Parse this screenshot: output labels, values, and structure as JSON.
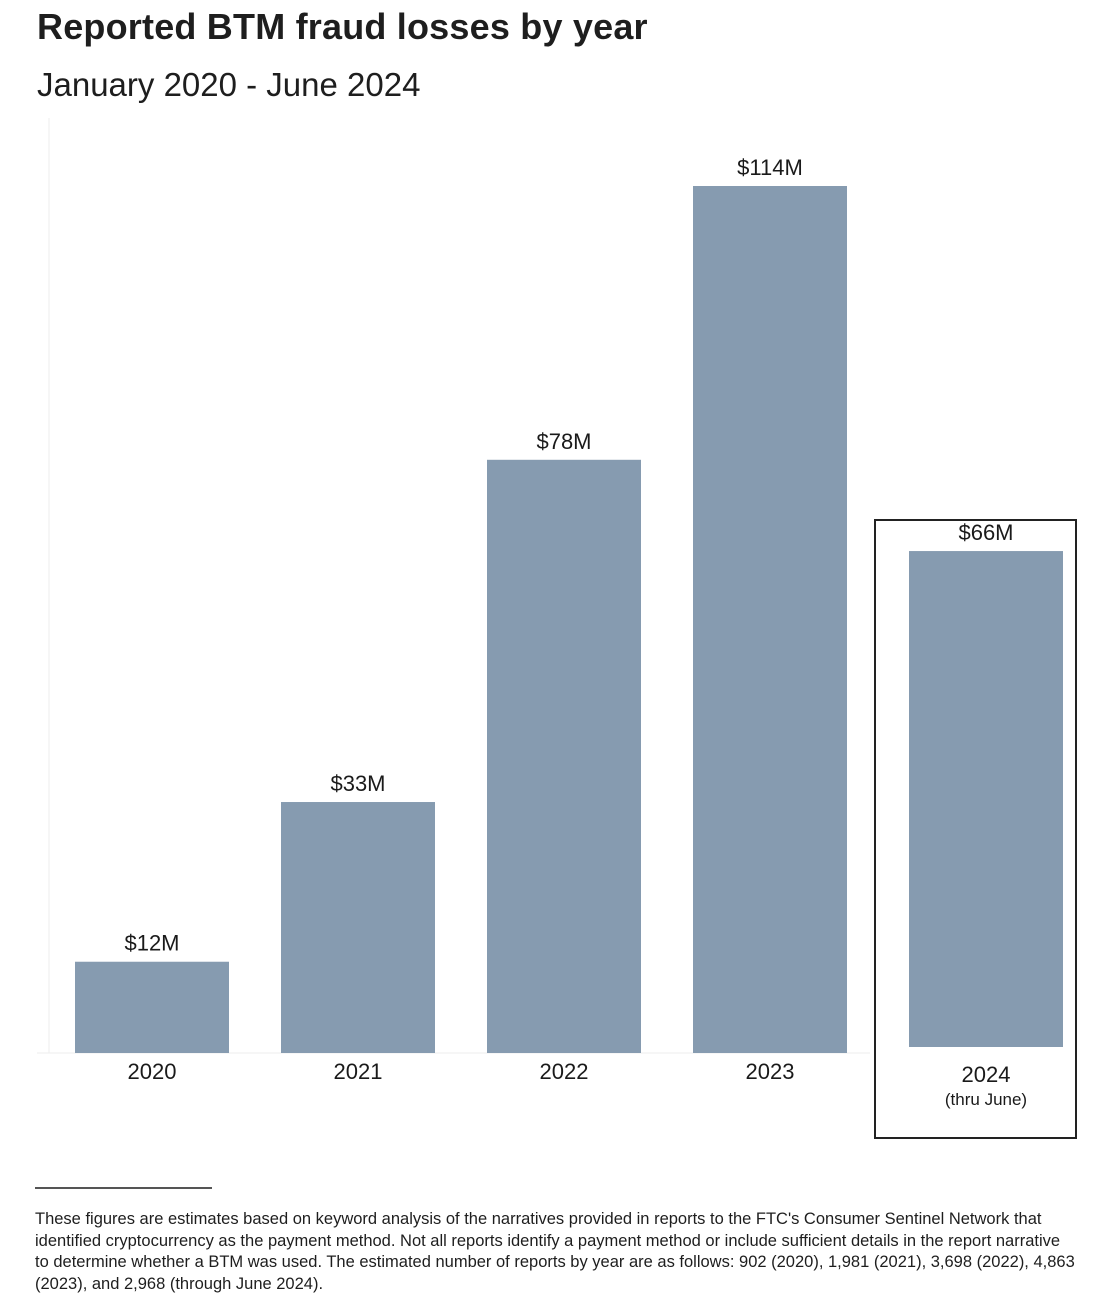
{
  "chart_data": {
    "type": "bar",
    "title": "Reported BTM fraud losses by year",
    "subtitle": "January 2020 - June 2024",
    "xlabel": "",
    "ylabel": "",
    "ylim": [
      0,
      114
    ],
    "grid": false,
    "categories": [
      "2020",
      "2021",
      "2022",
      "2023",
      "2024"
    ],
    "category_sublabels": [
      "",
      "",
      "",
      "",
      "(thru June)"
    ],
    "values": [
      12,
      33,
      78,
      114,
      66
    ],
    "value_labels": [
      "$12M",
      "$33M",
      "$78M",
      "$114M",
      "$66M"
    ],
    "highlighted_category": "2024",
    "bar_color": "#869bb0",
    "highlight_box_color": "#222222"
  },
  "footnote": "These figures are estimates based on keyword analysis of the narratives provided in reports to the FTC's Consumer Sentinel Network that identified cryptocurrency as the payment method. Not all reports identify a payment method or include sufficient details in the report narrative to determine whether a BTM was used. The estimated number of reports by year are as follows: 902 (2020), 1,981 (2021), 3,698 (2022), 4,863 (2023), and 2,968 (through June 2024)."
}
